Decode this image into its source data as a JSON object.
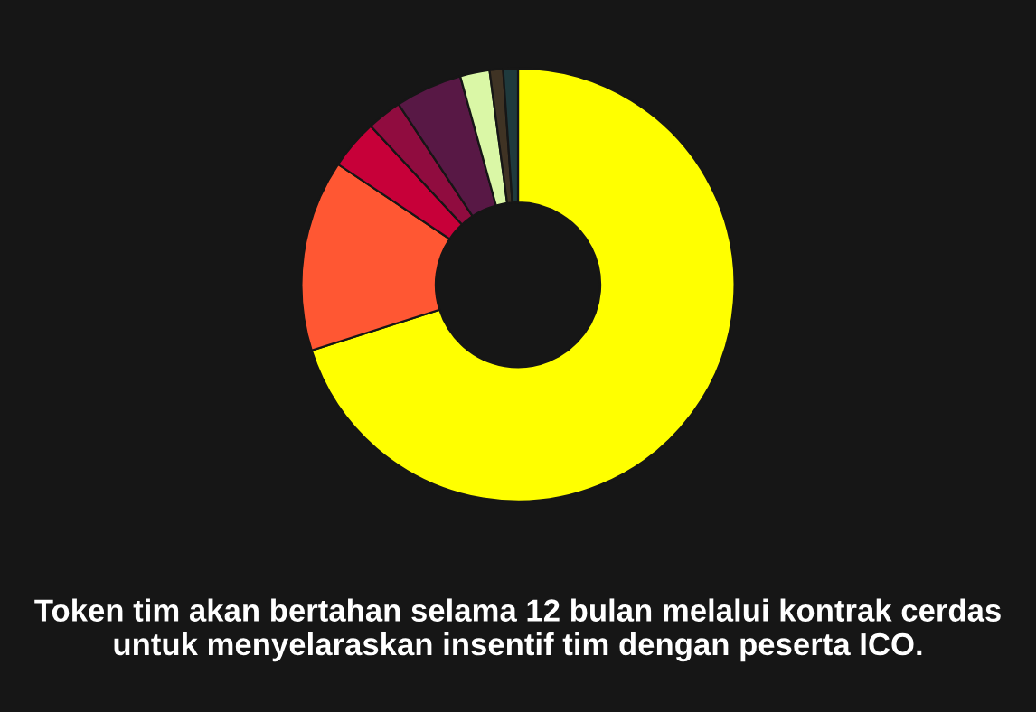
{
  "chart_data": {
    "type": "donut",
    "categories": [
      null,
      null,
      null,
      null,
      null,
      null,
      null,
      null
    ],
    "values": [
      70.1,
      14.3,
      3.7,
      2.6,
      5.0,
      2.2,
      1.0,
      1.1
    ],
    "colors": [
      "#ffff00",
      "#ff5733",
      "#c70039",
      "#900c3f",
      "#581845",
      "#daf7a6",
      "#3f3324",
      "#1f3a3d"
    ],
    "title": "Token tim akan bertahan selama 12 bulan melalui kontrak cerdas untuk menyelaraskan insentif tim dengan peserta ICO.",
    "legend": false
  }
}
